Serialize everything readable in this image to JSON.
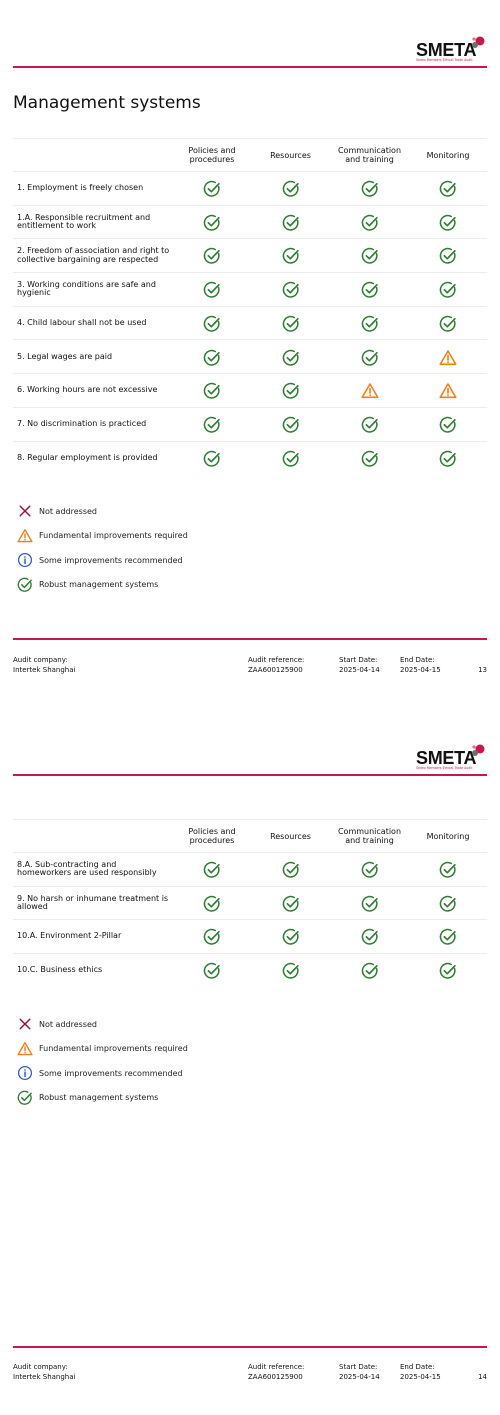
{
  "brand": {
    "logo_text": "SMETA",
    "logo_tagline": "Sedex Members Ethical Trade Audit",
    "accent_color": "#c8174a"
  },
  "colors": {
    "check": "#2e7d32",
    "warning": "#ef7d1a",
    "info": "#2f5bc3",
    "cross": "#9c1140"
  },
  "pages": [
    {
      "heading": "Management systems",
      "columns": [
        "Policies and procedures",
        "Resources",
        "Communication and training",
        "Monitoring"
      ],
      "rows": [
        {
          "label": "1. Employment is freely chosen",
          "status": [
            "check",
            "check",
            "check",
            "check"
          ]
        },
        {
          "label": "1.A. Responsible recruitment and entitlement to work",
          "status": [
            "check",
            "check",
            "check",
            "check"
          ]
        },
        {
          "label": "2. Freedom of association and right to collective bargaining are respected",
          "status": [
            "check",
            "check",
            "check",
            "check"
          ]
        },
        {
          "label": "3. Working conditions are safe and hygienic",
          "status": [
            "check",
            "check",
            "check",
            "check"
          ]
        },
        {
          "label": "4. Child labour shall not be used",
          "status": [
            "check",
            "check",
            "check",
            "check"
          ]
        },
        {
          "label": "5. Legal wages are paid",
          "status": [
            "check",
            "check",
            "check",
            "warning"
          ]
        },
        {
          "label": "6. Working hours are not excessive",
          "status": [
            "check",
            "check",
            "warning",
            "warning"
          ]
        },
        {
          "label": "7. No discrimination is practiced",
          "status": [
            "check",
            "check",
            "check",
            "check"
          ]
        },
        {
          "label": "8. Regular employment is provided",
          "status": [
            "check",
            "check",
            "check",
            "check"
          ]
        }
      ],
      "legend": [
        {
          "icon": "cross",
          "label": "Not addressed"
        },
        {
          "icon": "warning",
          "label": "Fundamental improvements required"
        },
        {
          "icon": "info",
          "label": "Some improvements recommended"
        },
        {
          "icon": "check",
          "label": "Robust management systems"
        }
      ],
      "footer": {
        "audit_company_label": "Audit company:",
        "audit_company": "Intertek Shanghai",
        "audit_reference_label": "Audit reference:",
        "audit_reference": "ZAA600125900",
        "start_date_label": "Start Date:",
        "start_date": "2025-04-14",
        "end_date_label": "End Date:",
        "end_date": "2025-04-15",
        "page_number": "13"
      }
    },
    {
      "heading": "",
      "columns": [
        "Policies and procedures",
        "Resources",
        "Communication and training",
        "Monitoring"
      ],
      "rows": [
        {
          "label": "8.A. Sub-contracting and homeworkers are used responsibly",
          "status": [
            "check",
            "check",
            "check",
            "check"
          ]
        },
        {
          "label": "9. No harsh or inhumane treatment is allowed",
          "status": [
            "check",
            "check",
            "check",
            "check"
          ]
        },
        {
          "label": "10.A. Environment 2-Pillar",
          "status": [
            "check",
            "check",
            "check",
            "check"
          ]
        },
        {
          "label": "10.C. Business ethics",
          "status": [
            "check",
            "check",
            "check",
            "check"
          ]
        }
      ],
      "legend": [
        {
          "icon": "cross",
          "label": "Not addressed"
        },
        {
          "icon": "warning",
          "label": "Fundamental improvements required"
        },
        {
          "icon": "info",
          "label": "Some improvements recommended"
        },
        {
          "icon": "check",
          "label": "Robust management systems"
        }
      ],
      "footer": {
        "audit_company_label": "Audit company:",
        "audit_company": "Intertek Shanghai",
        "audit_reference_label": "Audit reference:",
        "audit_reference": "ZAA600125900",
        "start_date_label": "Start Date:",
        "start_date": "2025-04-14",
        "end_date_label": "End Date:",
        "end_date": "2025-04-15",
        "page_number": "14"
      }
    }
  ]
}
